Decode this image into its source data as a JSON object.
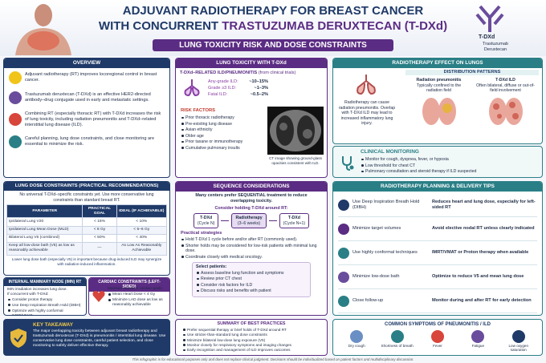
{
  "header": {
    "title_line1": "ADJUVANT RADIOTHERAPY FOR BREAST CANCER",
    "title_line2_prefix": "WITH CONCURRENT",
    "title_line2_drug": "TRASTUZUMAB DERUXTECAN (T-DXd)",
    "subtitle": "LUNG TOXICITY RISK AND DOSE CONSTRAINTS",
    "drug_label": "T-DXd",
    "drug_name": "Trastuzumab Deruxtecan"
  },
  "overview": {
    "title": "OVERVIEW",
    "items": [
      "Adjuvant radiotherapy (RT) improves locoregional control in breast cancer.",
      "Trastuzumab deruxtecan (T-DXd) is an effective HER2-directed antibody–drug conjugate used in early and metastatic settings.",
      "Combining RT (especially thoracic RT) with T-DXd increases the risk of lung toxicity, including radiation pneumonitis and T-DXd–related interstitial lung disease (ILD).",
      "Careful planning, lung dose constraints, and close monitoring are essential to minimize the risk."
    ]
  },
  "lung_toxicity": {
    "title": "LUNG TOXICITY WITH T-DXd",
    "heading": "T-DXd–RELATED ILD/PNEUMONITIS",
    "heading_note": "(from clinical trials)",
    "rates": [
      {
        "label": "Any-grade ILD:",
        "value": "~10–15%"
      },
      {
        "label": "Grade ≥3 ILD:",
        "value": "~1–3%"
      },
      {
        "label": "Fatal ILD:",
        "value": "~0.5–2%"
      }
    ],
    "risk_title": "RISK FACTORS",
    "risk_factors": [
      "Prior thoracic radiotherapy",
      "Pre-existing lung disease",
      "Asian ethnicity",
      "Older age",
      "Prior taxane or immunotherapy",
      "Cumulative pulmonary insults"
    ],
    "ct_caption": "CT image showing ground-glass opacities consistent with ILD."
  },
  "rt_effect": {
    "title": "RADIOTHERAPY EFFECT ON LUNGS",
    "text": "Radiotherapy can cause radiation pneumonitis. Overlap with T-DXd ILD may lead to increased inflammatory lung injury.",
    "patterns_title": "DISTRIBUTION PATTERNS",
    "patterns": [
      {
        "name": "Radiation pneumonitis",
        "desc": "Typically confined to the radiation field"
      },
      {
        "name": "T-DXd ILD",
        "desc": "Often bilateral, diffuse or out-of-field involvement"
      }
    ]
  },
  "monitoring": {
    "title": "CLINICAL MONITORING",
    "items": [
      "Monitor for cough, dyspnea, fever, or hypoxia",
      "Low threshold for chest CT",
      "Pulmonary consultation and steroid therapy if ILD suspected"
    ]
  },
  "dose": {
    "title": "LUNG DOSE CONSTRAINTS (PRACTICAL RECOMMENDATIONS)",
    "note": "No universal T-DXd–specific constraints yet. Use more conservative lung constraints than standard breast RT.",
    "columns": [
      "PARAMETER",
      "PRACTICAL GOAL",
      "IDEAL (IF ACHIEVABLE)"
    ],
    "rows": [
      [
        "Ipsilateral Lung V20",
        "< 15%",
        "< 10%"
      ],
      [
        "Ipsilateral Lung Mean Dose (MLD)",
        "< 8 Gy",
        "< 5–6 Gy"
      ],
      [
        "Bilateral Lung V5 (combined)",
        "< 50%",
        "< 40%"
      ],
      [
        "Keep all low-dose bath (V5) as low as reasonably achievable",
        "—",
        "As Low As Reasonably Achievable"
      ]
    ],
    "footnote": "Lower lung dose bath (especially V5) is important because drug-induced ILD may synergize with radiation-induced inflammation."
  },
  "imn": {
    "title": "INTERNAL MAMMARY NODE (IMN) RT",
    "intro": "IMN irradiation increases lung dose.",
    "lead": "If concurrent with T-DXd:",
    "items": [
      "Consider proton therapy",
      "Use Deep Inspiration Breath Hold (DIBH)",
      "Optimize with highly conformal IMRT/VMAT"
    ]
  },
  "cardiac": {
    "title": "CARDIAC CONSTRAINTS (LEFT-SIDED)",
    "intro": "Maintain standard cardiac goals:",
    "items": [
      "Mean Heart Dose < 4 Gy",
      "Minimize LAD dose as low as reasonably achievable"
    ]
  },
  "sequence": {
    "title": "SEQUENCE CONSIDERATIONS",
    "intro": "Many centers prefer SEQUENTIAL treatment to reduce overlapping toxicity.",
    "flow_title": "Consider holding T-DXd around RT:",
    "flow": [
      {
        "label": "T-DXd",
        "sub": "(Cycle N)"
      },
      {
        "label": "Radiotherapy",
        "sub": "(3–6 weeks)"
      },
      {
        "label": "T-DXd",
        "sub": "(Cycle N+1)"
      }
    ],
    "strategies_title": "Practical strategies",
    "strategies": [
      "Hold T-DXd 1 cycle before and/or after RT (commonly used).",
      "Shorter holds may be considered for low-risk patients with minimal lung dose.",
      "Coordinate closely with medical oncology."
    ],
    "checklist_title": "Select patients:",
    "checklist": [
      "Assess baseline lung function and symptoms",
      "Review prior CT chest",
      "Consider risk factors for ILD",
      "Discuss risks and benefits with patient"
    ]
  },
  "planning": {
    "title": "RADIOTHERAPY PLANNING & DELIVERY TIPS",
    "tips": [
      {
        "tip": "Use Deep Inspiration Breath Hold (DIBH)",
        "benefit": "Reduces heart and lung dose, especially for left-sided RT"
      },
      {
        "tip": "Minimize target volumes",
        "benefit": "Avoid elective nodal RT unless clearly indicated"
      },
      {
        "tip": "Use highly conformal techniques",
        "benefit": "IMRT/VMAT or Proton therapy when available"
      },
      {
        "tip": "Minimize low-dose bath",
        "benefit": "Optimize to reduce V5 and mean lung dose"
      },
      {
        "tip": "Close follow-up",
        "benefit": "Monitor during and after RT for early detection"
      }
    ]
  },
  "takeaway": {
    "title": "KEY TAKEAWAY",
    "text": "The major overlapping toxicity between adjuvant breast radiotherapy and trastuzumab deruxtecan (T-DXd) is pneumonitis / interstitial lung disease. Use conservative lung dose constraints, careful patient selection, and close monitoring to safely deliver effective therapy."
  },
  "summary": {
    "title": "SUMMARY OF BEST PRACTICES",
    "items": [
      "Prefer sequential therapy or brief holds of T-DXd around RT",
      "Use stricter-than-standard lung dose constraints",
      "Minimize bilateral low-dose lung exposure (V5)",
      "Monitor closely for respiratory symptoms and imaging changes",
      "Early recognition and management of ILD improves outcomes"
    ]
  },
  "symptoms": {
    "title": "COMMON SYMPTOMS OF PNEUMONITIS / ILD",
    "items": [
      "Dry cough",
      "Shortness of breath",
      "Fever",
      "Fatigue",
      "Low oxygen saturation"
    ]
  },
  "footer": "This infographic is for educational purposes only and does not replace clinical judgment. Decisions should be individualized based on patient factors and multidisciplinary discussion."
}
